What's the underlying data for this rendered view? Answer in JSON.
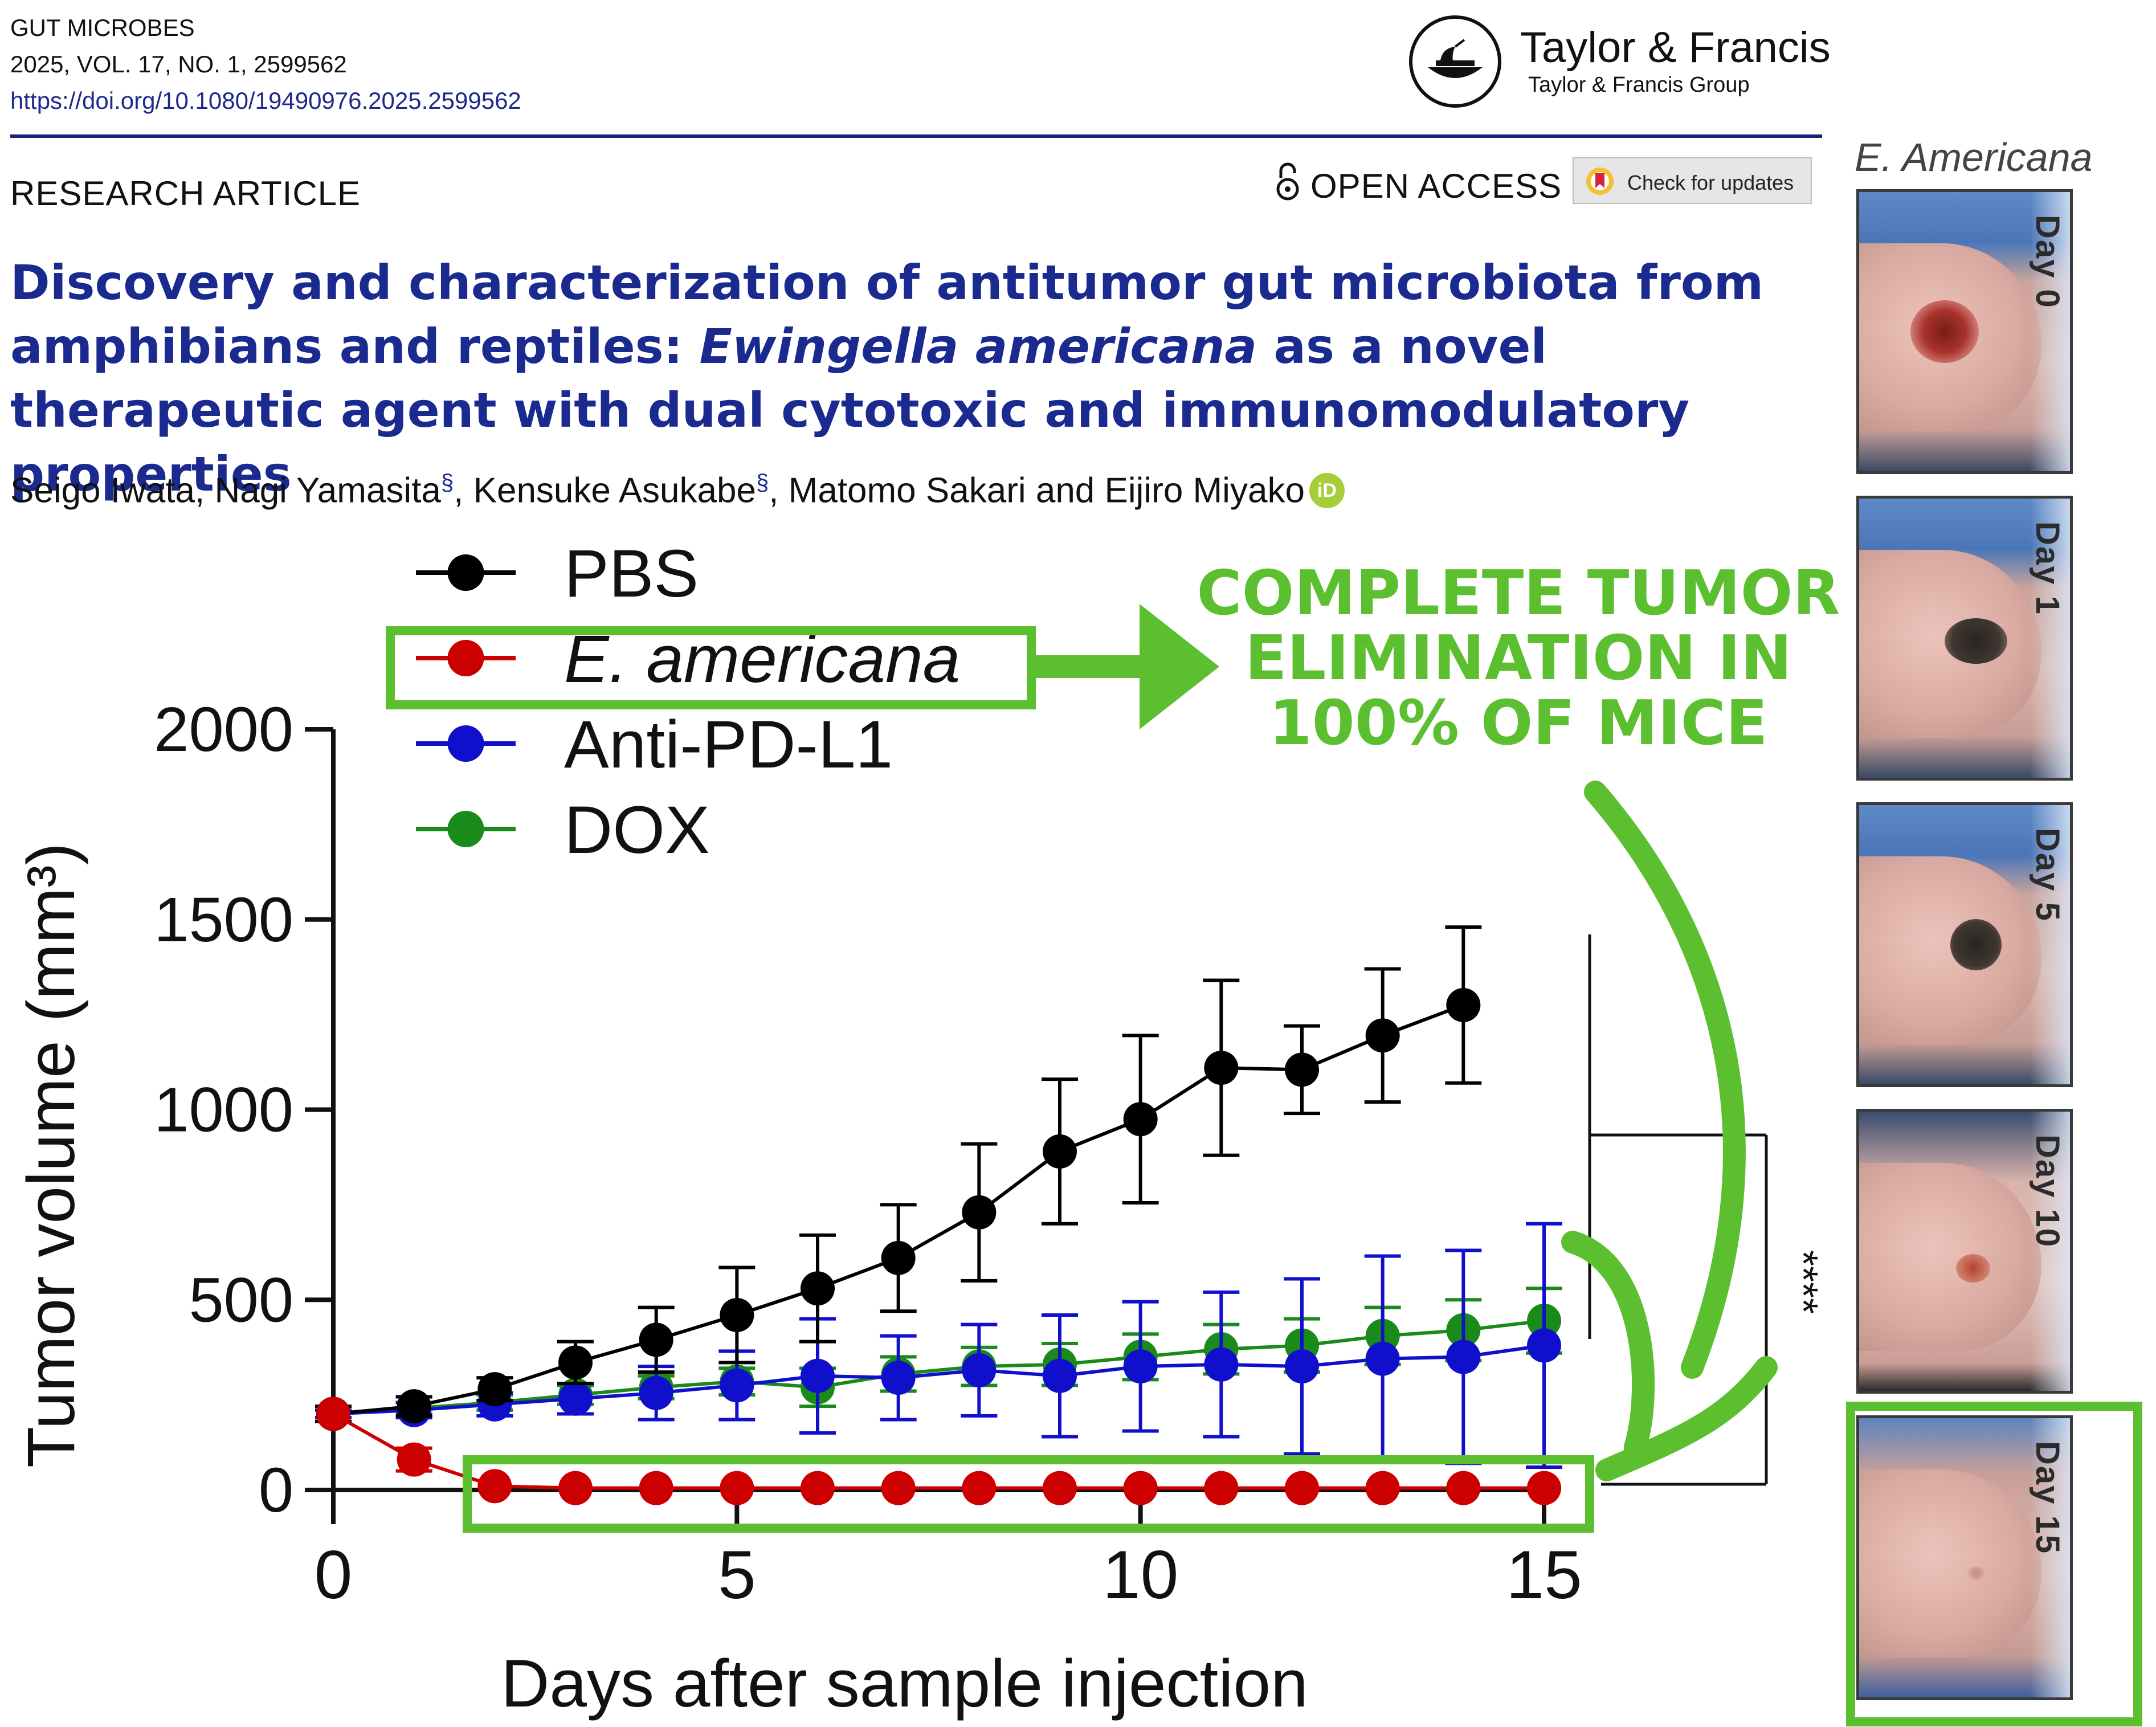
{
  "header": {
    "journal": "GUT MICROBES",
    "volume_line": "2025, VOL. 17, NO. 1, 2599562",
    "doi": "https://doi.org/10.1080/19490976.2025.2599562",
    "publisher": "Taylor & Francis",
    "publisher_group": "Taylor & Francis Group"
  },
  "article": {
    "type": "RESEARCH ARTICLE",
    "open_access": "OPEN ACCESS",
    "check_updates": "Check for updates",
    "title_part1": "Discovery and characterization of antitumor gut microbiota from amphibians and reptiles: ",
    "title_italic": "Ewingella americana",
    "title_part2": " as a novel therapeutic agent with dual cytotoxic and immunomodulatory properties",
    "authors": {
      "a1": "Seigo Iwata, ",
      "a2": "Nagi Yamasita",
      "a3": ", ",
      "a4": "Kensuke Asukabe",
      "a5": ", Matomo Sakari and Eijiro Miyako",
      "mark": "§",
      "orcid": "iD"
    }
  },
  "callout": {
    "line1": "COMPLETE TUMOR",
    "line2": "ELIMINATION IN",
    "line3": "100% OF MICE"
  },
  "photos": {
    "label": "E. Americana",
    "days": [
      "Day 0",
      "Day 1",
      "Day 5",
      "Day 10",
      "Day 15"
    ]
  },
  "colors": {
    "highlight": "#5cbf2f",
    "pbs": "#000000",
    "americana": "#cc0000",
    "antipdl1": "#1010cc",
    "dox": "#1a8a1a",
    "title": "#1a2a8f"
  },
  "chart_data": {
    "type": "line",
    "title": "",
    "xlabel": "Days after sample injection",
    "ylabel": "Tumor volume (mm³)",
    "xlim": [
      0,
      15
    ],
    "ylim": [
      0,
      2000
    ],
    "xticks": [
      0,
      5,
      10,
      15
    ],
    "yticks": [
      0,
      500,
      1000,
      1500,
      2000
    ],
    "significance": "****",
    "legend_position": "top-left",
    "series": [
      {
        "name": "PBS",
        "italic": false,
        "color": "#000000",
        "x": [
          0,
          1,
          2,
          3,
          4,
          5,
          6,
          7,
          8,
          9,
          10,
          11,
          12,
          13,
          14
        ],
        "y": [
          200,
          220,
          265,
          335,
          395,
          460,
          530,
          610,
          730,
          890,
          975,
          1110,
          1105,
          1195,
          1275
        ],
        "err": [
          20,
          25,
          30,
          55,
          85,
          125,
          140,
          140,
          180,
          190,
          220,
          230,
          115,
          175,
          205
        ]
      },
      {
        "name": "E. americana",
        "italic": true,
        "color": "#cc0000",
        "x": [
          0,
          1,
          2,
          3,
          4,
          5,
          6,
          7,
          8,
          9,
          10,
          11,
          12,
          13,
          14,
          15
        ],
        "y": [
          200,
          80,
          10,
          5,
          5,
          5,
          5,
          5,
          5,
          5,
          5,
          5,
          5,
          5,
          5,
          5
        ],
        "err": [
          0,
          30,
          0,
          0,
          0,
          0,
          0,
          0,
          0,
          0,
          0,
          0,
          0,
          0,
          0,
          0
        ]
      },
      {
        "name": "Anti-PD-L1",
        "italic": false,
        "color": "#1010cc",
        "x": [
          0,
          1,
          2,
          3,
          4,
          5,
          6,
          7,
          8,
          9,
          10,
          11,
          12,
          13,
          14,
          15
        ],
        "y": [
          200,
          210,
          225,
          240,
          255,
          275,
          300,
          295,
          315,
          300,
          325,
          330,
          325,
          345,
          350,
          380
        ],
        "err": [
          10,
          20,
          30,
          40,
          70,
          90,
          150,
          110,
          120,
          160,
          170,
          190,
          230,
          270,
          280,
          320
        ]
      },
      {
        "name": "DOX",
        "italic": false,
        "color": "#1a8a1a",
        "x": [
          0,
          1,
          2,
          3,
          4,
          5,
          6,
          7,
          8,
          9,
          10,
          11,
          12,
          13,
          14,
          15
        ],
        "y": [
          200,
          215,
          230,
          250,
          270,
          285,
          270,
          305,
          325,
          330,
          350,
          370,
          380,
          405,
          420,
          445
        ],
        "err": [
          10,
          15,
          20,
          25,
          30,
          35,
          50,
          45,
          50,
          55,
          60,
          65,
          70,
          75,
          80,
          85
        ]
      }
    ]
  }
}
